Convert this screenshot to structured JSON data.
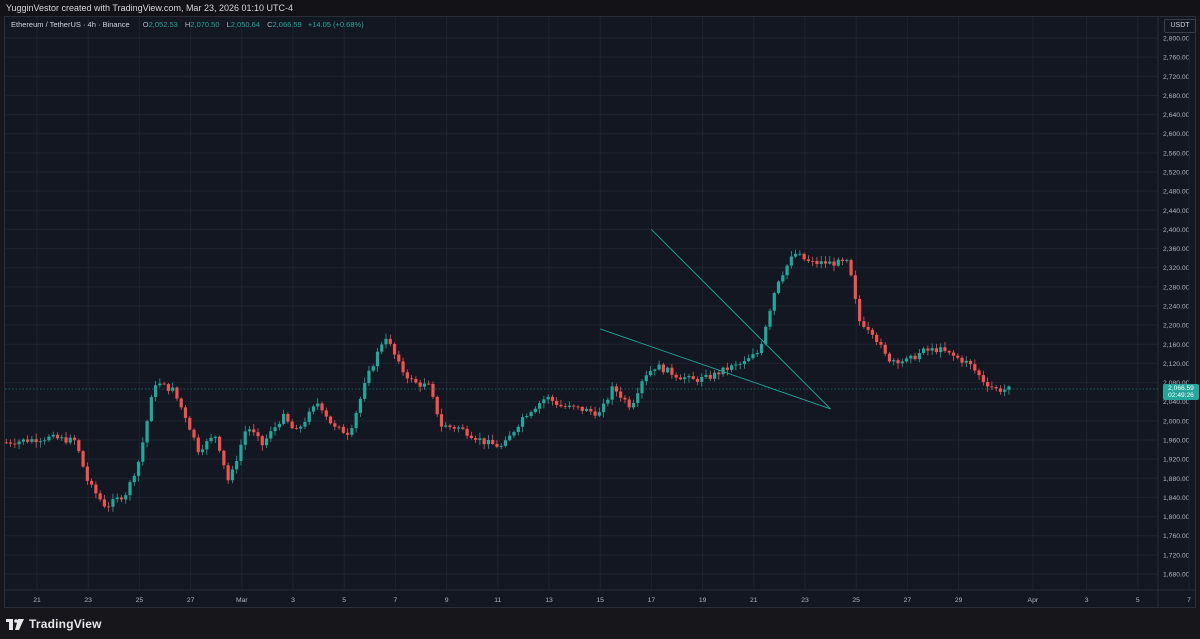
{
  "header": {
    "attribution": "YugginVestor created with TradingView.com, Mar 23, 2026 01:10 UTC-4"
  },
  "legend": {
    "symbol": "Ethereum / TetherUS · 4h · Binance",
    "open_label": "O",
    "open": "2,052.53",
    "high_label": "H",
    "high": "2,070.50",
    "low_label": "L",
    "low": "2,050.64",
    "close_label": "C",
    "close": "2,066.59",
    "change": "+14.05 (+0.68%)"
  },
  "price_axis": {
    "unit": "USDT",
    "ticks": [
      "2,800.00",
      "2,760.00",
      "2,720.00",
      "2,680.00",
      "2,640.00",
      "2,600.00",
      "2,560.00",
      "2,520.00",
      "2,480.00",
      "2,440.00",
      "2,400.00",
      "2,360.00",
      "2,320.00",
      "2,280.00",
      "2,240.00",
      "2,200.00",
      "2,160.00",
      "2,120.00",
      "2,080.00",
      "2,040.00",
      "2,000.00",
      "1,960.00",
      "1,920.00",
      "1,880.00",
      "1,840.00",
      "1,800.00",
      "1,760.00",
      "1,720.00",
      "1,680.00"
    ],
    "current_price": "2,066.59",
    "countdown": "02:49:26"
  },
  "time_axis": {
    "ticks": [
      "21",
      "23",
      "25",
      "27",
      "Mar",
      "3",
      "5",
      "7",
      "9",
      "11",
      "13",
      "15",
      "17",
      "19",
      "21",
      "23",
      "25",
      "27",
      "29",
      "Apr",
      "3",
      "5",
      "7"
    ]
  },
  "footer": {
    "brand": "TradingView"
  },
  "colors": {
    "up": "#26a69a",
    "down": "#ef5350",
    "trendline": "#26a69a",
    "background": "#131722",
    "grid": "#1f2330"
  },
  "chart_data": {
    "type": "candlestick",
    "title": "Ethereum / TetherUS · 4h · Binance",
    "ylim": [
      1660,
      2820
    ],
    "price_axis_side": "right",
    "grid": true,
    "key_points": [
      {
        "date": "Feb 20",
        "price": 1955
      },
      {
        "date": "Feb 23",
        "price": 1820
      },
      {
        "date": "Feb 25",
        "price": 2080
      },
      {
        "date": "Feb 28",
        "price": 1860
      },
      {
        "date": "Mar 4",
        "price": 2180
      },
      {
        "date": "Mar 9",
        "price": 1945
      },
      {
        "date": "Mar 13",
        "price": 2130
      },
      {
        "date": "Mar 16",
        "price": 2360
      },
      {
        "date": "Mar 18",
        "price": 2200
      },
      {
        "date": "Mar 21",
        "price": 2150
      },
      {
        "date": "Mar 23",
        "price": 2066.59
      }
    ],
    "trendlines": [
      {
        "name": "upper",
        "from": {
          "date": "Mar 17",
          "price": 2400
        },
        "to": {
          "date": "Mar 24",
          "price": 2025
        }
      },
      {
        "name": "lower",
        "from": {
          "date": "Mar 15",
          "price": 2192
        },
        "to": {
          "date": "Mar 24",
          "price": 2025
        }
      }
    ]
  }
}
